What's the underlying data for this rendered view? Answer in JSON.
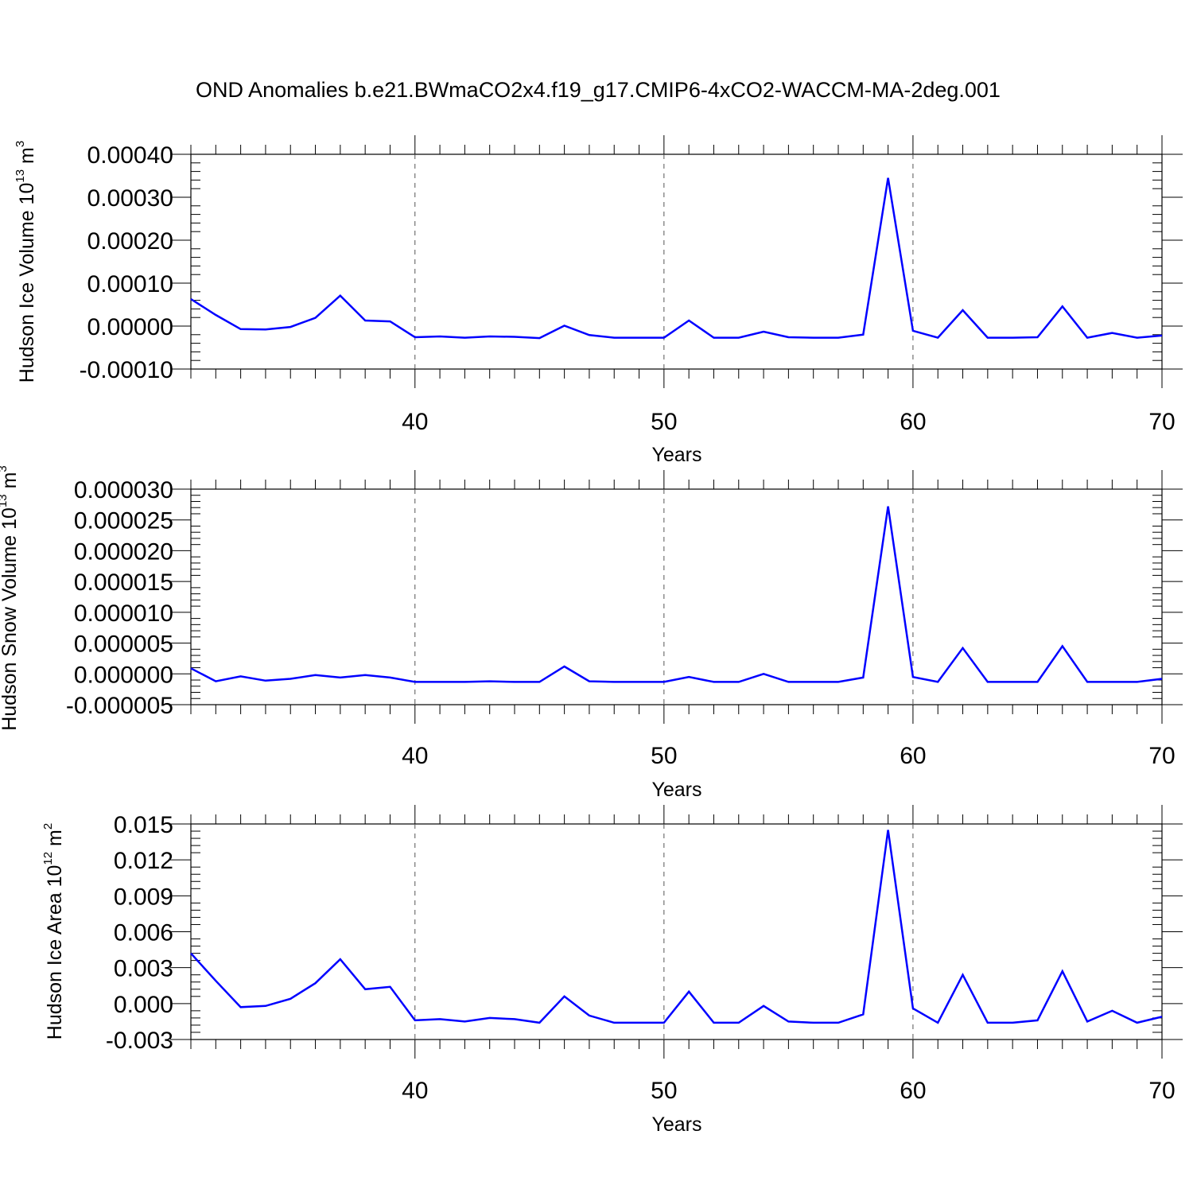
{
  "figure": {
    "title": "OND Anomalies b.e21.BWmaCO2x4.f19_g17.CMIP6-4xCO2-WACCM-MA-2deg.001"
  },
  "chart_data": [
    {
      "type": "line",
      "ylabel": "Hudson Ice Volume 10",
      "ylabel_exponent": "13",
      "ylabel_unit": " m",
      "ylabel_unit_exponent": "3",
      "xlabel": "Years",
      "xlim": [
        31,
        70
      ],
      "ylim": [
        -0.0001,
        0.0004
      ],
      "yticks": [
        "0.00040",
        "0.00030",
        "0.00020",
        "0.00010",
        "0.00000",
        "-0.00010"
      ],
      "ytick_values": [
        0.0004,
        0.0003,
        0.0002,
        0.0001,
        0.0,
        -0.0001
      ],
      "xticks": [
        "40",
        "50",
        "60",
        "70"
      ],
      "xtick_values": [
        40,
        50,
        60,
        70
      ],
      "grid_x": [
        40,
        50,
        60
      ],
      "line_color": "#0000ff",
      "x": [
        31,
        32,
        33,
        34,
        35,
        36,
        37,
        38,
        39,
        40,
        41,
        42,
        43,
        44,
        45,
        46,
        47,
        48,
        49,
        50,
        51,
        52,
        53,
        54,
        55,
        56,
        57,
        58,
        59,
        60,
        61,
        62,
        63,
        64,
        65,
        66,
        67,
        68,
        69,
        70
      ],
      "values": [
        6.3e-05,
        2.6e-05,
        -7e-06,
        -8e-06,
        -2e-06,
        1.9e-05,
        7.1e-05,
        1.3e-05,
        1.1e-05,
        -2.6e-05,
        -2.4e-05,
        -2.7e-05,
        -2.4e-05,
        -2.5e-05,
        -2.8e-05,
        1e-06,
        -2.1e-05,
        -2.7e-05,
        -2.7e-05,
        -2.7e-05,
        1.3e-05,
        -2.7e-05,
        -2.7e-05,
        -1.3e-05,
        -2.6e-05,
        -2.7e-05,
        -2.7e-05,
        -2e-05,
        0.000345,
        -1.1e-05,
        -2.7e-05,
        3.7e-05,
        -2.7e-05,
        -2.7e-05,
        -2.6e-05,
        4.6e-05,
        -2.7e-05,
        -1.6e-05,
        -2.7e-05,
        -2.2e-05
      ]
    },
    {
      "type": "line",
      "ylabel": "Hudson Snow Volume 10",
      "ylabel_exponent": "13",
      "ylabel_unit": " m",
      "ylabel_unit_exponent": "3",
      "xlabel": "Years",
      "xlim": [
        31,
        70
      ],
      "ylim": [
        -5e-06,
        3e-05
      ],
      "yticks": [
        "0.000030",
        "0.000025",
        "0.000020",
        "0.000015",
        "0.000010",
        "0.000005",
        "0.000000",
        "-0.000005"
      ],
      "ytick_values": [
        3e-05,
        2.5e-05,
        2e-05,
        1.5e-05,
        1e-05,
        5e-06,
        0.0,
        -5e-06
      ],
      "xticks": [
        "40",
        "50",
        "60",
        "70"
      ],
      "xtick_values": [
        40,
        50,
        60,
        70
      ],
      "grid_x": [
        40,
        50,
        60
      ],
      "line_color": "#0000ff",
      "x": [
        31,
        32,
        33,
        34,
        35,
        36,
        37,
        38,
        39,
        40,
        41,
        42,
        43,
        44,
        45,
        46,
        47,
        48,
        49,
        50,
        51,
        52,
        53,
        54,
        55,
        56,
        57,
        58,
        59,
        60,
        61,
        62,
        63,
        64,
        65,
        66,
        67,
        68,
        69,
        70
      ],
      "values": [
        9e-07,
        -1.2e-06,
        -4e-07,
        -1.1e-06,
        -8e-07,
        -2e-07,
        -6e-07,
        -2e-07,
        -6e-07,
        -1.3e-06,
        -1.3e-06,
        -1.3e-06,
        -1.2e-06,
        -1.3e-06,
        -1.3e-06,
        1.2e-06,
        -1.2e-06,
        -1.3e-06,
        -1.3e-06,
        -1.3e-06,
        -5e-07,
        -1.3e-06,
        -1.3e-06,
        0.0,
        -1.3e-06,
        -1.3e-06,
        -1.3e-06,
        -6e-07,
        2.72e-05,
        -5e-07,
        -1.3e-06,
        4.2e-06,
        -1.3e-06,
        -1.3e-06,
        -1.3e-06,
        4.5e-06,
        -1.3e-06,
        -1.3e-06,
        -1.3e-06,
        -8e-07
      ]
    },
    {
      "type": "line",
      "ylabel": "Hudson Ice Area 10",
      "ylabel_exponent": "12",
      "ylabel_unit": " m",
      "ylabel_unit_exponent": "2",
      "xlabel": "Years",
      "xlim": [
        31,
        70
      ],
      "ylim": [
        -0.003,
        0.015
      ],
      "yticks": [
        "0.015",
        "0.012",
        "0.009",
        "0.006",
        "0.003",
        "0.000",
        "-0.003"
      ],
      "ytick_values": [
        0.015,
        0.012,
        0.009,
        0.006,
        0.003,
        0.0,
        -0.003
      ],
      "xticks": [
        "40",
        "50",
        "60",
        "70"
      ],
      "xtick_values": [
        40,
        50,
        60,
        70
      ],
      "grid_x": [
        40,
        50,
        60
      ],
      "line_color": "#0000ff",
      "x": [
        31,
        32,
        33,
        34,
        35,
        36,
        37,
        38,
        39,
        40,
        41,
        42,
        43,
        44,
        45,
        46,
        47,
        48,
        49,
        50,
        51,
        52,
        53,
        54,
        55,
        56,
        57,
        58,
        59,
        60,
        61,
        62,
        63,
        64,
        65,
        66,
        67,
        68,
        69,
        70
      ],
      "values": [
        0.0042,
        0.0019,
        -0.0003,
        -0.0002,
        0.0004,
        0.0017,
        0.0037,
        0.0012,
        0.0014,
        -0.0014,
        -0.0013,
        -0.0015,
        -0.0012,
        -0.0013,
        -0.0016,
        0.0006,
        -0.001,
        -0.0016,
        -0.0016,
        -0.0016,
        0.001,
        -0.0016,
        -0.0016,
        -0.0002,
        -0.0015,
        -0.0016,
        -0.0016,
        -0.0009,
        0.0145,
        -0.0004,
        -0.0016,
        0.0024,
        -0.0016,
        -0.0016,
        -0.0014,
        0.0027,
        -0.0015,
        -0.0006,
        -0.0016,
        -0.0011
      ]
    }
  ]
}
